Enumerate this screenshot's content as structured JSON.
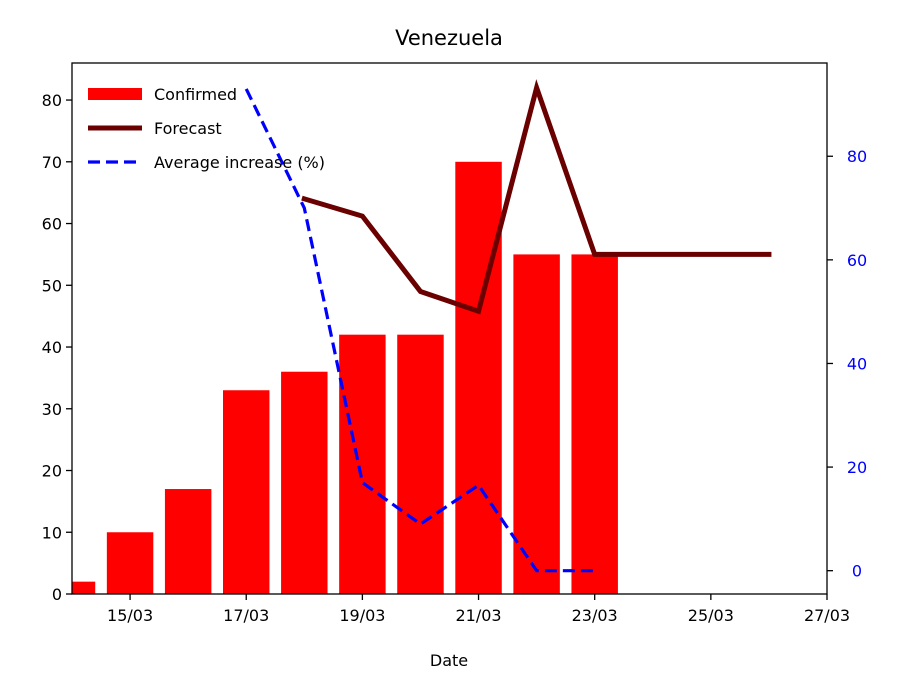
{
  "chart_data": {
    "type": "bar",
    "title": "Venezuela",
    "xlabel": "Date",
    "ylabel": "",
    "ylabel_right": "",
    "x_ticks": [
      "15/03",
      "17/03",
      "19/03",
      "21/03",
      "23/03",
      "25/03",
      "27/03"
    ],
    "y_ticks": [
      "0",
      "10",
      "20",
      "30",
      "40",
      "50",
      "60",
      "70",
      "80"
    ],
    "y_right_ticks": [
      "0",
      "20",
      "40",
      "60",
      "80"
    ],
    "xlim": [
      "14/03",
      "27/03"
    ],
    "ylim": [
      0,
      86
    ],
    "ylim_right": [
      -4.5,
      98
    ],
    "grid": false,
    "legend_position": "top-left",
    "colors": {
      "confirmed": "#ff0000",
      "forecast": "#6b0000",
      "average_increase": "#0000ff"
    },
    "series": [
      {
        "name": "Confirmed",
        "kind": "bar",
        "x": [
          "14/03",
          "15/03",
          "16/03",
          "17/03",
          "18/03",
          "19/03",
          "20/03",
          "21/03",
          "22/03",
          "23/03"
        ],
        "values": [
          2,
          10,
          17,
          33,
          36,
          42,
          42,
          70,
          55,
          55
        ]
      },
      {
        "name": "Forecast",
        "kind": "line",
        "x": [
          "18/03",
          "19/03",
          "20/03",
          "21/03",
          "22/03",
          "23/03",
          "24/03",
          "25/03",
          "26/03"
        ],
        "values": [
          64,
          61.2,
          49,
          45.8,
          82,
          55,
          55,
          55,
          55
        ]
      },
      {
        "name": "Average increase (%)",
        "kind": "line",
        "axis": "right",
        "x": [
          "17/03",
          "18/03",
          "19/03",
          "20/03",
          "21/03",
          "22/03",
          "23/03"
        ],
        "values": [
          93,
          70,
          17,
          9,
          16.5,
          0,
          0
        ]
      }
    ]
  }
}
